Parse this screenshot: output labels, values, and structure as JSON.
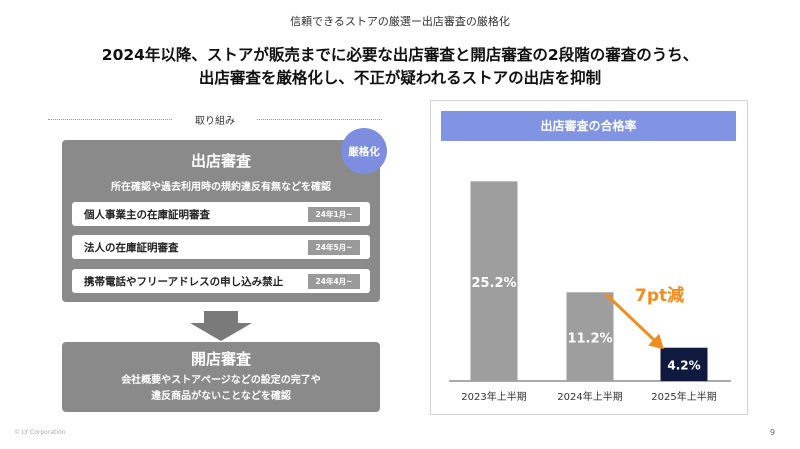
{
  "header": {
    "subtitle": "信頼できるストアの厳選ー出店審査の厳格化",
    "headline_line1": "2024年以降、ストアが販売までに必要な出店審査と開店審査の2段階の審査のうち、",
    "headline_line2": "出店審査を厳格化し、不正が疑われるストアの出店を抑制"
  },
  "left": {
    "section_label": "取り組み",
    "review": {
      "title": "出店審査",
      "badge": "厳格化",
      "description": "所在確認や過去利用時の規約違反有無などを確認",
      "items": [
        {
          "label": "個人事業主の在庫証明審査",
          "tag": "24年1月~"
        },
        {
          "label": "法人の在庫証明審査",
          "tag": "24年5月~"
        },
        {
          "label": "携帯電話やフリーアドレスの申し込み禁止",
          "tag": "24年4月~"
        }
      ]
    },
    "open_review": {
      "title": "開店審査",
      "desc_line1": "会社概要やストアページなどの設定の完了や",
      "desc_line2": "違反商品がないことなどを確認"
    }
  },
  "chart_data": {
    "type": "bar",
    "title": "出店審査の合格率",
    "categories": [
      "2023年上半期",
      "2024年上半期",
      "2025年上半期"
    ],
    "values": [
      25.2,
      11.2,
      4.2
    ],
    "value_labels": [
      "25.2%",
      "11.2%",
      "4.2%"
    ],
    "bar_colors": [
      "#9e9e9e",
      "#9e9e9e",
      "#101a3e"
    ],
    "annotation": "7pt減",
    "annotation_color": "#f28c1c",
    "ylim": [
      0,
      26
    ],
    "grid": false,
    "legend": "none"
  },
  "footer": {
    "copyright": "© LY Corporation",
    "page": "9"
  }
}
